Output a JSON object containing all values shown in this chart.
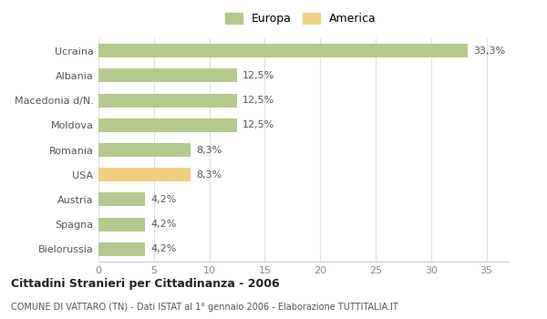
{
  "categories": [
    "Ucraina",
    "Albania",
    "Macedonia d/N.",
    "Moldova",
    "Romania",
    "USA",
    "Austria",
    "Spagna",
    "Bielorussia"
  ],
  "values": [
    33.3,
    12.5,
    12.5,
    12.5,
    8.3,
    8.3,
    4.2,
    4.2,
    4.2
  ],
  "labels": [
    "33,3%",
    "12,5%",
    "12,5%",
    "12,5%",
    "8,3%",
    "8,3%",
    "4,2%",
    "4,2%",
    "4,2%"
  ],
  "colors": [
    "#b5c98e",
    "#b5c98e",
    "#b5c98e",
    "#b5c98e",
    "#b5c98e",
    "#f0d080",
    "#b5c98e",
    "#b5c98e",
    "#b5c98e"
  ],
  "europa_color": "#b5c98e",
  "america_color": "#f0d080",
  "title": "Cittadini Stranieri per Cittadinanza - 2006",
  "subtitle": "COMUNE DI VATTARO (TN) - Dati ISTAT al 1° gennaio 2006 - Elaborazione TUTTITALIA.IT",
  "xlim": [
    0,
    37
  ],
  "xticks": [
    0,
    5,
    10,
    15,
    20,
    25,
    30,
    35
  ],
  "bg_color": "#ffffff",
  "bar_height": 0.55,
  "legend_europa": "Europa",
  "legend_america": "America"
}
